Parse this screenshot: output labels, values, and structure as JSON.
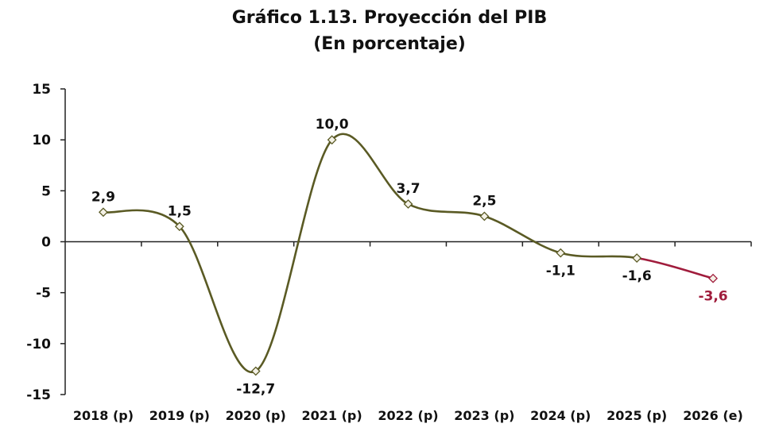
{
  "chart_data": {
    "type": "line",
    "title": "Gráfico 1.13. Proyección del PIB",
    "subtitle": "(En porcentaje)",
    "categories": [
      "2018 (p)",
      "2019 (p)",
      "2020 (p)",
      "2021 (p)",
      "2022 (p)",
      "2023 (p)",
      "2024 (p)",
      "2025 (p)",
      "2026 (e)"
    ],
    "values": [
      2.9,
      1.5,
      -12.7,
      10.0,
      3.7,
      2.5,
      -1.1,
      -1.6,
      -3.6
    ],
    "data_labels": [
      "2,9",
      "1,5",
      "-12,7",
      "10,0",
      "3,7",
      "2,5",
      "-1,1",
      "-1,6",
      "-3,6"
    ],
    "yticks": [
      "15",
      "10",
      "5",
      "0",
      "-5",
      "-10",
      "-15"
    ],
    "ylim": [
      -15,
      15
    ],
    "grid": false,
    "series_colors": {
      "projected": "#5a5a24",
      "estimated": "#a01c3c"
    },
    "marker": "diamond"
  }
}
